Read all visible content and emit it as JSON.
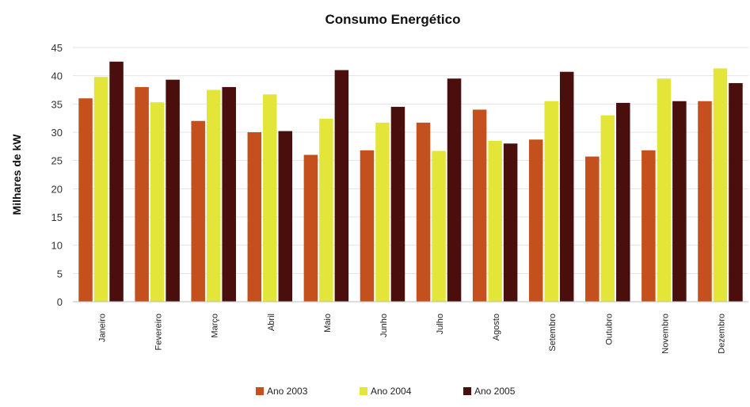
{
  "chart_data": {
    "type": "bar",
    "title": "Consumo Energético",
    "xlabel": "",
    "ylabel": "Milhares de kW",
    "ylim": [
      0,
      45
    ],
    "yticks": [
      0,
      5,
      10,
      15,
      20,
      25,
      30,
      35,
      40,
      45
    ],
    "grid": true,
    "legend_position": "bottom",
    "categories": [
      "Janeiro",
      "Fevereiro",
      "Março",
      "Abril",
      "Maio",
      "Junho",
      "Julho",
      "Agosto",
      "Setembro",
      "Outubro",
      "Novembro",
      "Dezembro"
    ],
    "series": [
      {
        "name": "Ano 2003",
        "color": "#c4501e",
        "values": [
          36,
          38,
          32,
          30,
          26,
          26.8,
          31.7,
          34,
          28.7,
          25.7,
          26.8,
          35.5
        ]
      },
      {
        "name": "Ano 2004",
        "color": "#e3e639",
        "values": [
          39.8,
          35.3,
          37.5,
          36.7,
          32.4,
          31.7,
          26.7,
          28.5,
          35.5,
          33,
          39.5,
          41.3
        ]
      },
      {
        "name": "Ano 2005",
        "color": "#4a0f0d",
        "values": [
          42.5,
          39.3,
          38,
          30.2,
          41,
          34.5,
          39.5,
          28,
          40.7,
          35.2,
          35.5,
          38.7
        ]
      }
    ]
  }
}
